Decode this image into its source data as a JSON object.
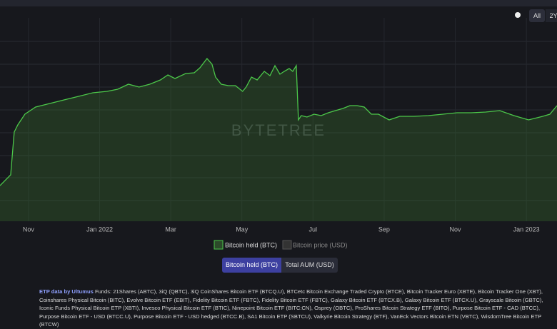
{
  "chart_data": {
    "type": "area",
    "series": [
      {
        "name": "Bitcoin held (BTC)",
        "color": "#4cc84a",
        "x": [
          -0.8,
          -0.5,
          -0.4,
          -0.3,
          -0.1,
          0.2,
          0.6,
          1.0,
          1.41,
          1.81,
          2.21,
          2.51,
          2.81,
          3.11,
          3.41,
          3.71,
          3.92,
          4.12,
          4.42,
          4.66,
          4.82,
          5.02,
          5.16,
          5.26,
          5.42,
          5.62,
          5.82,
          6.02,
          6.12,
          6.27,
          6.43,
          6.63,
          6.79,
          6.93,
          7.07,
          7.19,
          7.33,
          7.43,
          7.53,
          7.59,
          7.67,
          7.83,
          8.03,
          8.23,
          8.43,
          8.63,
          8.84,
          9.04,
          9.24,
          9.44,
          9.64,
          9.84,
          10.14,
          10.44,
          10.84,
          11.24,
          11.65,
          12.05,
          12.45,
          12.85,
          13.25,
          13.65,
          14.06,
          14.46,
          14.66,
          14.86
        ],
        "values": [
          50,
          65,
          125,
          135,
          150,
          160,
          165,
          170,
          175,
          180,
          182,
          185,
          192,
          188,
          192,
          198,
          205,
          200,
          207,
          208,
          215,
          228,
          220,
          202,
          192,
          190,
          190,
          182,
          188,
          202,
          198,
          210,
          204,
          218,
          206,
          210,
          214,
          210,
          218,
          142,
          148,
          146,
          150,
          148,
          152,
          155,
          158,
          162,
          162,
          160,
          150,
          150,
          142,
          147,
          147,
          148,
          150,
          152,
          152,
          153,
          155,
          148,
          142,
          147,
          150,
          162
        ]
      }
    ],
    "inactive_legend": "Bitcoin price (USD)",
    "xlim": [
      -0.8,
      14.86
    ],
    "xticks": [
      {
        "value": 0,
        "label": "Nov"
      },
      {
        "value": 2,
        "label": "Jan 2022"
      },
      {
        "value": 4,
        "label": "Mar"
      },
      {
        "value": 6,
        "label": "May"
      },
      {
        "value": 8,
        "label": "Jul"
      },
      {
        "value": 10,
        "label": "Sep"
      },
      {
        "value": 12,
        "label": "Nov"
      },
      {
        "value": 14,
        "label": "Jan 2023"
      }
    ],
    "ylim": [
      0,
      285
    ],
    "grid": true,
    "watermark": "BYTETREE",
    "range_buttons": [
      "All",
      "2Y"
    ],
    "metric_buttons": [
      "Bitcoin held (BTC)",
      "Total AUM (USD)"
    ],
    "source_label": "ETP data by Ultumus",
    "source_text": "Funds: 21Shares (ABTC), 3iQ (QBTC), 3iQ CoinShares Bitcoin ETF (BTCQ.U), BTCetc Bitcoin Exchange Traded Crypto (BTCE), Bitcoin Tracker Euro (XBTE), Bitcoin Tracker One (XBT), Coinshares Physical Bitcoin (BITC), Evolve Bitcoin ETF (EBIT), Fidelity Bitcoin ETF (FBTC), Fidelity Bitcoin ETF (FBTC), Galaxy Bitcoin ETF (BTCX.B), Galaxy Bitcoin ETF (BTCX.U), Grayscale Bitcoin (GBTC), Iconic Funds Physical Bitcoin ETP (XBTI), Invesco Physical Bitcoin ETF (BTIC), Ninepoint Bitcoin ETF (BITC:CN), Osprey (OBTC), ProShares Bitcoin Strategy ETF (BITO), Purpose Bitcoin ETF - CAD (BTCC), Purpose Bitcoin ETF - USD (BTCC.U), Purpose Bitcoin ETF - USD hedged (BTCC.B), SA1 Bitcoin ETP (SBTCU), Valkyrie Bitcoin Strategy (BTF), VanEck Vectors Bitcoin ETN (VBTC), WisdomTree Bitcoin ETP (BTCW)"
  }
}
